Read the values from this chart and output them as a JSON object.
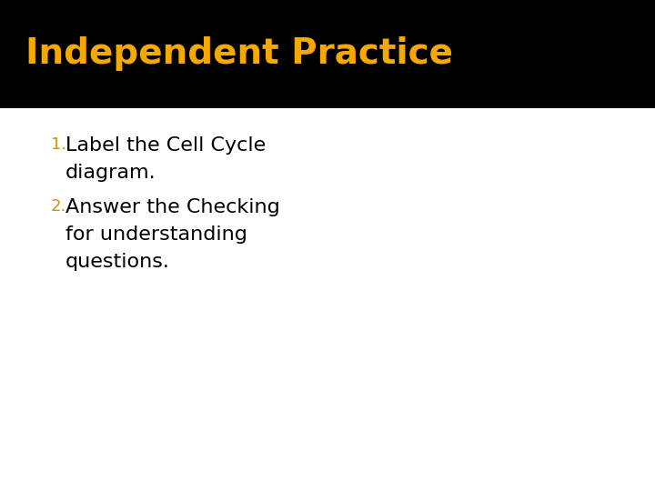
{
  "title": "Independent Practice",
  "title_color": "#F5A800",
  "title_bg_color": "#000000",
  "body_bg_color": "#FFFFFF",
  "item1_number": "1.",
  "item1_number_color": "#C8960C",
  "item1_text_line1": "Label the Cell Cycle",
  "item1_text_line2": "diagram.",
  "item2_number": "2.",
  "item2_number_color": "#C8960C",
  "item2_text_line1": "Answer the Checking",
  "item2_text_line2": "for understanding",
  "item2_text_line3": "questions.",
  "body_text_color": "#000000",
  "title_fontsize": 28,
  "body_fontsize": 16,
  "number_fontsize": 13,
  "title_bar_height": 0.22
}
